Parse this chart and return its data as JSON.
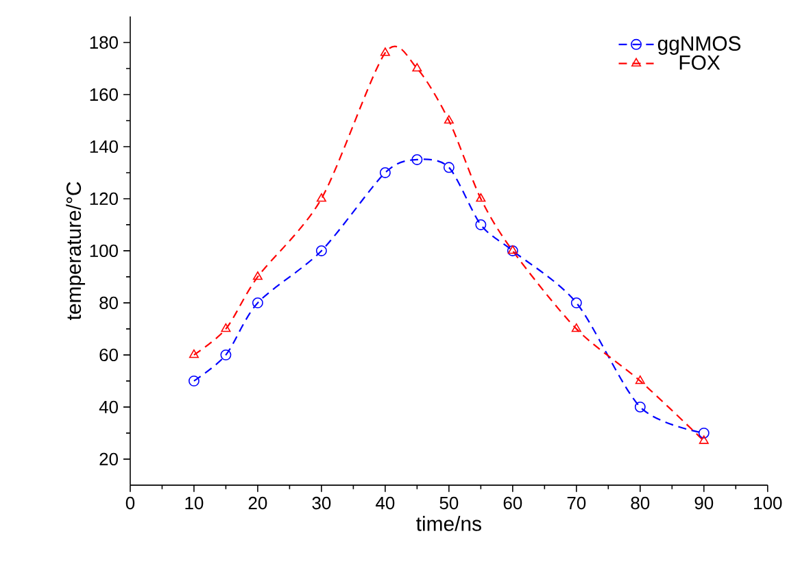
{
  "chart_data": {
    "type": "line",
    "xlabel": "time/ns",
    "ylabel": "temperature/°C",
    "x": [
      10,
      15,
      20,
      30,
      40,
      45,
      50,
      55,
      60,
      70,
      80,
      90
    ],
    "series": [
      {
        "name": "ggNMOS",
        "color": "#0000ff",
        "marker": "circle",
        "values": [
          50,
          60,
          80,
          100,
          130,
          135,
          132,
          110,
          100,
          80,
          40,
          30
        ]
      },
      {
        "name": "FOX",
        "color": "#ff0000",
        "marker": "triangle",
        "values": [
          60,
          70,
          90,
          120,
          176,
          170,
          150,
          120,
          100,
          70,
          50,
          27
        ]
      }
    ],
    "line_style": "dashed",
    "legend": "top right",
    "grid": false,
    "xlim": [
      0,
      100
    ],
    "ylim": [
      10,
      190
    ],
    "xticks": [
      0,
      10,
      20,
      30,
      40,
      50,
      60,
      70,
      80,
      90,
      100
    ],
    "yticks": [
      20,
      40,
      60,
      80,
      100,
      120,
      140,
      160,
      180
    ]
  }
}
